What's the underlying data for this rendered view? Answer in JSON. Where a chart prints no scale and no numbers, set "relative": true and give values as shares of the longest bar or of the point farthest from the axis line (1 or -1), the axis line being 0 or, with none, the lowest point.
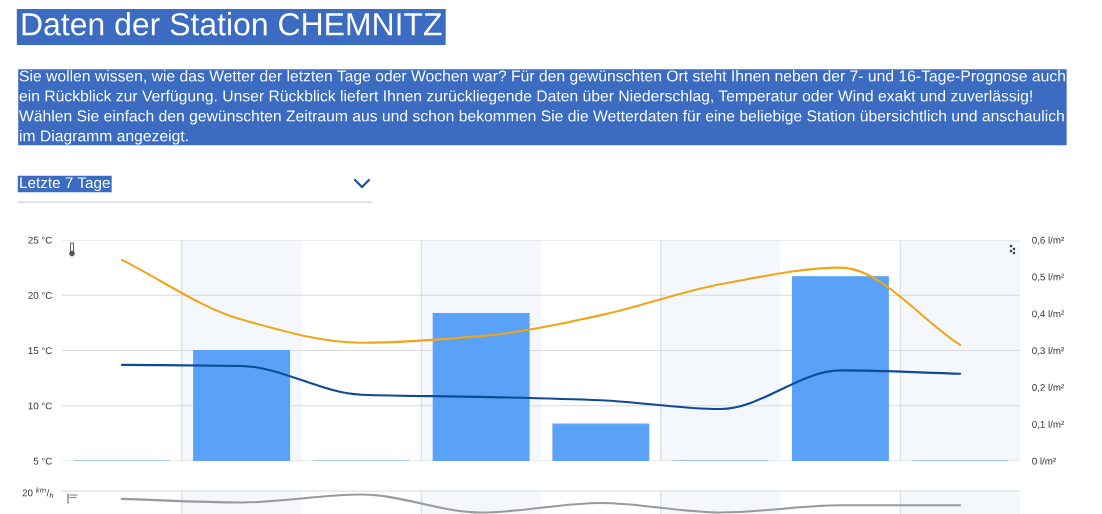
{
  "chart_data": [
    {
      "type": "line",
      "title": "Daten der Station CHEMNITZ",
      "subtitle": "Sie wollen wissen, wie das Wetter der letzten Tage oder Wochen war? Für den gewünschten Ort steht Ihnen neben der 7- und 16-Tage-Prognose auch\nein Rückblick zur Verfügung. Unser Rückblick liefert Ihnen zurückliegende Daten über Niederschlag, Temperatur oder Wind exakt und zuverlässig!\nWählen Sie einfach den gewünschten Zeitraum aus und schon bekommen Sie die Wetterdaten für eine beliebige Station übersichtlich und anschaulich\nim Diagramm angezeigt.",
      "annotations": [
        "Letzte 7 Tage"
      ],
      "categories": [
        null,
        null,
        null,
        null,
        null,
        null,
        null,
        null
      ],
      "series": [
        {
          "type": "bar",
          "axis": "y2",
          "color": "#5aa1f8",
          "values": [
            0,
            0.3,
            0,
            0.4,
            0.1,
            0,
            0.5,
            0
          ]
        },
        {
          "color": "#f2a516",
          "values": [
            23.2,
            17.8,
            15.7,
            16.3,
            18.2,
            21.0,
            22.5,
            15.5
          ]
        },
        {
          "color": "#0d4b96",
          "values": [
            13.7,
            13.6,
            11.0,
            10.8,
            10.5,
            9.7,
            13.2,
            12.9
          ]
        }
      ],
      "ylim": [
        5,
        25
      ],
      "yticks": [
        {
          "value": 5,
          "label": "5 °C"
        },
        {
          "value": 10,
          "label": "10 °C"
        },
        {
          "value": 15,
          "label": "15 °C"
        },
        {
          "value": 20,
          "label": "20 °C"
        },
        {
          "value": 25,
          "label": "25 °C"
        }
      ],
      "y2lim": [
        0,
        0.6
      ],
      "y2ticks": [
        {
          "value": 0,
          "label": "0 l/m²"
        },
        {
          "value": 0.1,
          "label": "0,1 l/m²"
        },
        {
          "value": 0.2,
          "label": "0,2 l/m²"
        },
        {
          "value": 0.3,
          "label": "0,3 l/m²"
        },
        {
          "value": 0.4,
          "label": "0,4 l/m²"
        },
        {
          "value": 0.5,
          "label": "0,5 l/m²"
        },
        {
          "value": 0.6,
          "label": "0,6 l/m²"
        }
      ],
      "grid": "y"
    },
    {
      "type": "line",
      "relative": true,
      "annotations": [
        "20 $^{km}$/$_{h}$"
      ],
      "categories": [
        null,
        null,
        null,
        null,
        null,
        null,
        null,
        null
      ],
      "series": [
        {
          "color": "#9a9a9a",
          "values": [
            0.76,
            0.56,
            1,
            0,
            0.53,
            0,
            0.4,
            0.4
          ]
        }
      ]
    }
  ]
}
